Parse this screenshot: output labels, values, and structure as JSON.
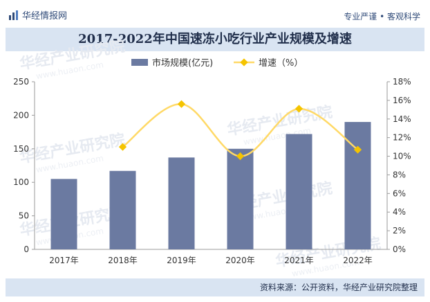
{
  "brand": {
    "name": "华经情报网",
    "slogan": "专业严谨 • 客观科学"
  },
  "title": "2017-2022年中国速冻小吃行业产业规模及增速",
  "source": "资料来源：公开资料，华经产业研究院整理",
  "watermark": {
    "text": "华经产业研究院",
    "url": "www.huaon.com"
  },
  "colors": {
    "bar": "#6b7aa1",
    "line": "#ffd966",
    "marker": "#f5c400",
    "header": "#2f4a78",
    "band": "#d9e4f2"
  },
  "chart_data": {
    "type": "bar",
    "categories": [
      "2017年",
      "2018年",
      "2019年",
      "2020年",
      "2021年",
      "2022年"
    ],
    "series": [
      {
        "name": "市场规模(亿元)",
        "type": "bar",
        "axis": "left",
        "values": [
          105,
          117,
          137,
          150,
          172,
          190
        ]
      },
      {
        "name": "增速（%）",
        "type": "line",
        "axis": "right",
        "values": [
          null,
          11.0,
          15.6,
          10.0,
          15.1,
          10.7
        ]
      }
    ],
    "y_left": {
      "min": 0,
      "max": 250,
      "ticks": [
        "0",
        "50",
        "100",
        "150",
        "200",
        "250"
      ]
    },
    "y_right": {
      "min": 0,
      "max": 18,
      "ticks": [
        "0%",
        "2%",
        "4%",
        "6%",
        "8%",
        "10%",
        "12%",
        "14%",
        "16%",
        "18%"
      ]
    },
    "legend_position": "top-center",
    "grid": false
  }
}
